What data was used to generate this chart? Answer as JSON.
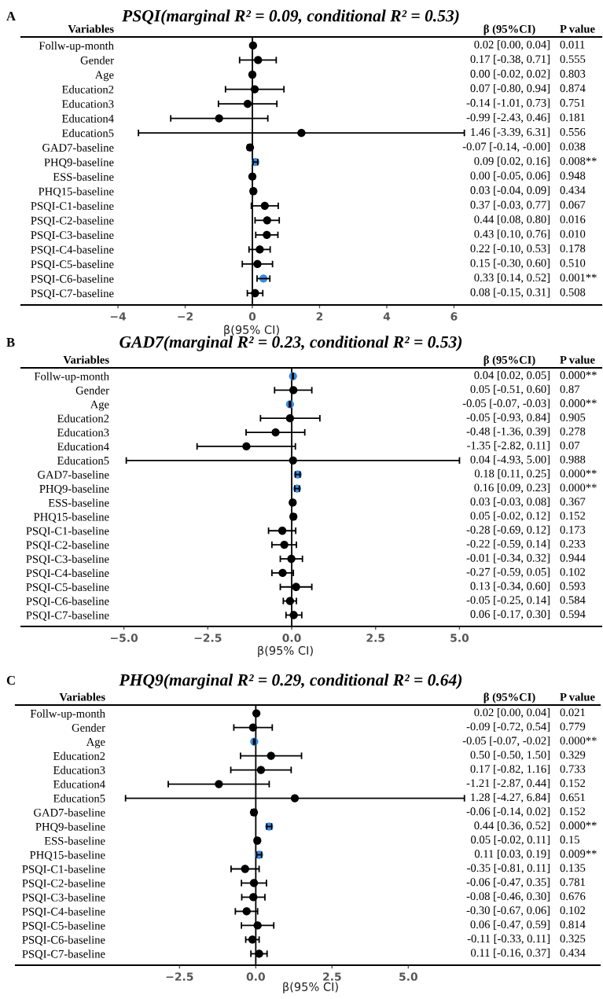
{
  "chart_data": [
    {
      "type": "scatter",
      "orientation": "horizontal",
      "marker": "circle",
      "grid": false,
      "title": "PSQI(marginal R² = 0.09, conditional R² = 0.53)",
      "xlabel": "β(95% CI)",
      "ylabel": "Variables",
      "categories": [
        "Follw-up-month",
        "Gender",
        "Age",
        "Education2",
        "Education3",
        "Education4",
        "Education5",
        "GAD7-baseline",
        "PHQ9-baseline",
        "ESS-baseline",
        "PHQ15-baseline",
        "PSQI-C1-baseline",
        "PSQI-C2-baseline",
        "PSQI-C3-baseline",
        "PSQI-C4-baseline",
        "PSQI-C5-baseline",
        "PSQI-C6-baseline",
        "PSQI-C7-baseline"
      ],
      "values": [
        0.02,
        0.17,
        0.0,
        0.07,
        -0.14,
        -0.99,
        1.46,
        -0.07,
        0.09,
        0.0,
        0.03,
        0.37,
        0.44,
        0.43,
        0.22,
        0.15,
        0.33,
        0.08
      ],
      "errors": [
        [
          0.0,
          0.04
        ],
        [
          -0.38,
          0.71
        ],
        [
          -0.02,
          0.02
        ],
        [
          -0.8,
          0.94
        ],
        [
          -1.01,
          0.73
        ],
        [
          -2.43,
          0.46
        ],
        [
          -3.39,
          6.31
        ],
        [
          -0.14,
          -0.0
        ],
        [
          0.02,
          0.16
        ],
        [
          -0.05,
          0.06
        ],
        [
          -0.04,
          0.09
        ],
        [
          -0.03,
          0.77
        ],
        [
          0.08,
          0.8
        ],
        [
          0.1,
          0.76
        ],
        [
          -0.1,
          0.53
        ],
        [
          -0.3,
          0.6
        ],
        [
          0.14,
          0.52
        ],
        [
          -0.15,
          0.31
        ]
      ],
      "colors": [
        "#000000",
        "#000000",
        "#000000",
        "#000000",
        "#000000",
        "#000000",
        "#000000",
        "#000000",
        "#3b8be0",
        "#000000",
        "#000000",
        "#000000",
        "#000000",
        "#000000",
        "#000000",
        "#000000",
        "#3b8be0",
        "#000000"
      ],
      "annotations": [
        "A",
        "β (95%CI)",
        "P value",
        "0.02 [0.00, 0.04]",
        "0.17 [-0.38, 0.71]",
        "0.00 [-0.02, 0.02]",
        "0.07 [-0.80, 0.94]",
        "-0.14 [-1.01, 0.73]",
        "-0.99 [-2.43, 0.46]",
        "1.46 [-3.39, 6.31]",
        "-0.07 [-0.14, -0.00]",
        "0.09 [0.02, 0.16]",
        "0.00 [-0.05, 0.06]",
        "0.03 [-0.04, 0.09]",
        "0.37 [-0.03, 0.77]",
        "0.44 [0.08, 0.80]",
        "0.43 [0.10, 0.76]",
        "0.22 [-0.10, 0.53]",
        "0.15 [-0.30, 0.60]",
        "0.33 [0.14, 0.52]",
        "0.08 [-0.15, 0.31]",
        "0.011",
        "0.555",
        "0.803",
        "0.874",
        "0.751",
        "0.181",
        "0.556",
        "0.038",
        "0.008**",
        "0.948",
        "0.434",
        "0.067",
        "0.016",
        "0.010",
        "0.178",
        "0.510",
        "0.001**",
        "0.508"
      ],
      "xlim": [
        -6.88,
        10.39
      ],
      "xticks": [
        {
          "value": -4,
          "label": "−4"
        },
        {
          "value": -2,
          "label": "−2"
        },
        0,
        2,
        4,
        6
      ],
      "ref_lines": [
        {
          "axis": "x",
          "value": 0,
          "color": "#000000"
        }
      ]
    },
    {
      "type": "scatter",
      "orientation": "horizontal",
      "marker": "circle",
      "grid": false,
      "title": "GAD7(marginal R² = 0.23, conditional R² = 0.53)",
      "xlabel": "β(95% CI)",
      "ylabel": "Variables",
      "categories": [
        "Follw-up-month",
        "Gender",
        "Age",
        "Education2",
        "Education3",
        "Education4",
        "Education5",
        "GAD7-baseline",
        "PHQ9-baseline",
        "ESS-baseline",
        "PHQ15-baseline",
        "PSQI-C1-baseline",
        "PSQI-C2-baseline",
        "PSQI-C3-baseline",
        "PSQI-C4-baseline",
        "PSQI-C5-baseline",
        "PSQI-C6-baseline",
        "PSQI-C7-baseline"
      ],
      "values": [
        0.04,
        0.05,
        -0.05,
        -0.05,
        -0.48,
        -1.35,
        0.04,
        0.18,
        0.16,
        0.03,
        0.05,
        -0.28,
        -0.22,
        -0.01,
        -0.27,
        0.13,
        -0.05,
        0.06
      ],
      "errors": [
        [
          0.02,
          0.05
        ],
        [
          -0.51,
          0.6
        ],
        [
          -0.07,
          -0.03
        ],
        [
          -0.93,
          0.84
        ],
        [
          -1.36,
          0.39
        ],
        [
          -2.82,
          0.11
        ],
        [
          -4.93,
          5.0
        ],
        [
          0.11,
          0.25
        ],
        [
          0.09,
          0.23
        ],
        [
          -0.03,
          0.08
        ],
        [
          -0.02,
          0.12
        ],
        [
          -0.69,
          0.12
        ],
        [
          -0.59,
          0.14
        ],
        [
          -0.34,
          0.32
        ],
        [
          -0.59,
          0.05
        ],
        [
          -0.34,
          0.6
        ],
        [
          -0.25,
          0.14
        ],
        [
          -0.17,
          0.3
        ]
      ],
      "colors": [
        "#3b8be0",
        "#000000",
        "#3b8be0",
        "#000000",
        "#000000",
        "#000000",
        "#000000",
        "#3b8be0",
        "#3b8be0",
        "#000000",
        "#000000",
        "#000000",
        "#000000",
        "#000000",
        "#000000",
        "#000000",
        "#000000",
        "#000000"
      ],
      "annotations": [
        "B",
        "β (95%CI)",
        "P value",
        "0.04 [0.02, 0.05]",
        "0.05 [-0.51, 0.60]",
        "-0.05 [-0.07, -0.03]",
        "-0.05 [-0.93, 0.84]",
        "-0.48 [-1.36, 0.39]",
        "-1.35 [-2.82, 0.11]",
        "0.04 [-4.93, 5.00]",
        "0.18 [0.11, 0.25]",
        "0.16 [0.09, 0.23]",
        "0.03 [-0.03, 0.08]",
        "0.05 [-0.02, 0.12]",
        "-0.28 [-0.69, 0.12]",
        "-0.22 [-0.59, 0.14]",
        "-0.01 [-0.34, 0.32]",
        "-0.27 [-0.59, 0.05]",
        "0.13 [-0.34, 0.60]",
        "-0.05 [-0.25, 0.14]",
        "0.06 [-0.17, 0.30]",
        "0.000**",
        "0.87",
        "0.000**",
        "0.905",
        "0.278",
        "0.07",
        "0.988",
        "0.000**",
        "0.000**",
        "0.367",
        "0.152",
        "0.173",
        "0.233",
        "0.944",
        "0.102",
        "0.593",
        "0.584",
        "0.594"
      ],
      "xlim": [
        -8.06,
        9.23
      ],
      "xticks": [
        {
          "value": -5,
          "label": "−5.0"
        },
        {
          "value": -2.5,
          "label": "−2.5"
        },
        {
          "value": 0,
          "label": "0.0"
        },
        2.5,
        {
          "value": 5,
          "label": "5.0"
        }
      ],
      "ref_lines": [
        {
          "axis": "x",
          "value": 0,
          "color": "#000000"
        }
      ]
    },
    {
      "type": "scatter",
      "orientation": "horizontal",
      "marker": "circle",
      "grid": false,
      "title": "PHQ9(marginal R² = 0.29, conditional R² = 0.64)",
      "xlabel": "β(95% CI)",
      "ylabel": "Variables",
      "categories": [
        "Follw-up-month",
        "Gender",
        "Age",
        "Education2",
        "Education3",
        "Education4",
        "Education5",
        "GAD7-baseline",
        "PHQ9-baseline",
        "ESS-baseline",
        "PHQ15-baseline",
        "PSQI-C1-baseline",
        "PSQI-C2-baseline",
        "PSQI-C3-baseline",
        "PSQI-C4-baseline",
        "PSQI-C5-baseline",
        "PSQI-C6-baseline",
        "PSQI-C7-baseline"
      ],
      "values": [
        0.02,
        -0.09,
        -0.05,
        0.5,
        0.17,
        -1.21,
        1.28,
        -0.06,
        0.44,
        0.05,
        0.11,
        -0.35,
        -0.06,
        -0.08,
        -0.3,
        0.06,
        -0.11,
        0.11
      ],
      "errors": [
        [
          0.0,
          0.04
        ],
        [
          -0.72,
          0.54
        ],
        [
          -0.07,
          -0.02
        ],
        [
          -0.5,
          1.5
        ],
        [
          -0.82,
          1.16
        ],
        [
          -2.87,
          0.44
        ],
        [
          -4.27,
          6.84
        ],
        [
          -0.14,
          0.02
        ],
        [
          0.36,
          0.52
        ],
        [
          -0.02,
          0.11
        ],
        [
          0.03,
          0.19
        ],
        [
          -0.81,
          0.11
        ],
        [
          -0.47,
          0.35
        ],
        [
          -0.46,
          0.3
        ],
        [
          -0.67,
          0.06
        ],
        [
          -0.47,
          0.59
        ],
        [
          -0.33,
          0.11
        ],
        [
          -0.16,
          0.37
        ]
      ],
      "colors": [
        "#000000",
        "#000000",
        "#3b8be0",
        "#000000",
        "#000000",
        "#000000",
        "#000000",
        "#000000",
        "#3b8be0",
        "#000000",
        "#3b8be0",
        "#000000",
        "#000000",
        "#000000",
        "#000000",
        "#000000",
        "#000000",
        "#000000"
      ],
      "annotations": [
        "C",
        "β (95%CI)",
        "P value",
        "0.02 [0.00, 0.04]",
        "-0.09 [-0.72, 0.54]",
        "-0.05 [-0.07, -0.02]",
        "0.50 [-0.50, 1.50]",
        "0.17 [-0.82, 1.16]",
        "-1.21 [-2.87, 0.44]",
        "1.28 [-4.27, 6.84]",
        "-0.06 [-0.14, 0.02]",
        "0.44 [0.36, 0.52]",
        "0.05 [-0.02, 0.11]",
        "0.11 [0.03, 0.19]",
        "-0.35 [-0.81, 0.11]",
        "-0.06 [-0.47, 0.35]",
        "-0.08 [-0.46, 0.30]",
        "-0.30 [-0.67, 0.06]",
        "0.06 [-0.47, 0.59]",
        "-0.11 [-0.33, 0.11]",
        "0.11 [-0.16, 0.37]",
        "0.021",
        "0.779",
        "0.000**",
        "0.329",
        "0.733",
        "0.152",
        "0.651",
        "0.152",
        "0.000**",
        "0.15",
        "0.009**",
        "0.135",
        "0.781",
        "0.676",
        "0.102",
        "0.814",
        "0.325",
        "0.434"
      ],
      "xlim": [
        -7.87,
        11.28
      ],
      "xticks": [
        {
          "value": -2.5,
          "label": "−2.5"
        },
        {
          "value": 0,
          "label": "0.0"
        },
        2.5,
        {
          "value": 5,
          "label": "5.0"
        }
      ],
      "ref_lines": [
        {
          "axis": "x",
          "value": 0,
          "color": "#000000"
        }
      ]
    }
  ]
}
